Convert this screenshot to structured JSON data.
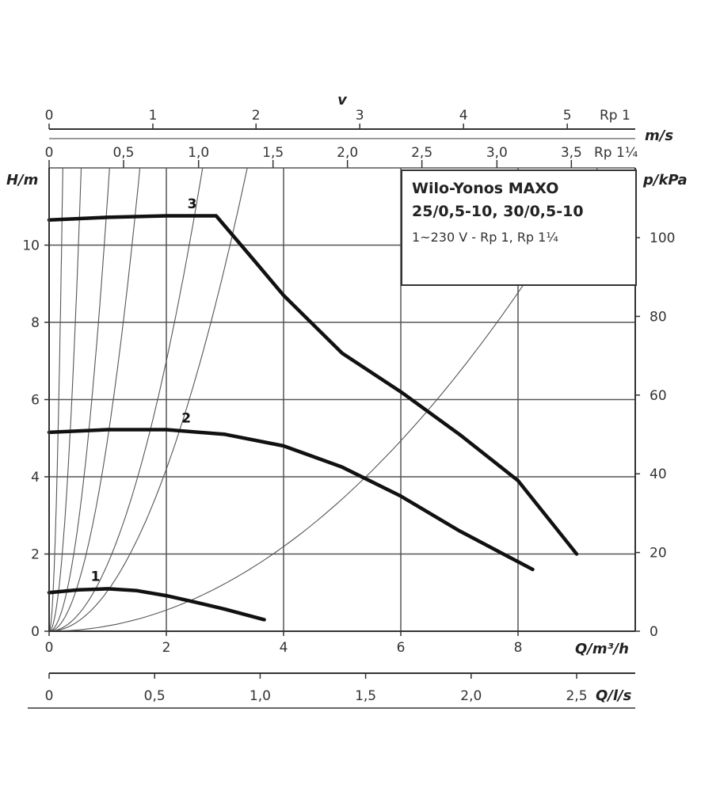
{
  "chart_data": {
    "type": "line",
    "title_lines": [
      "Wilo-Yonos MAXO",
      "25/0,5-10, 30/0,5-10"
    ],
    "subtitle": "1~230 V - Rp 1, Rp 1¼",
    "xlabel": "Q/m³/h",
    "ylabel": "H/m",
    "y2label": "p/kPa",
    "xlim": [
      0,
      10
    ],
    "ylim": [
      0,
      12
    ],
    "grid": true,
    "x_ticks": [
      0,
      2,
      4,
      6,
      8
    ],
    "x_tick_labels": [
      "0",
      "2",
      "4",
      "6",
      "8"
    ],
    "y_ticks": [
      0,
      2,
      4,
      6,
      8,
      10
    ],
    "y_tick_labels": [
      "0",
      "2",
      "4",
      "6",
      "8",
      "10"
    ],
    "y2_ticks": [
      0,
      20,
      40,
      60,
      80,
      100
    ],
    "y2_tick_labels": [
      "0",
      "20",
      "40",
      "60",
      "80",
      "100"
    ],
    "secondary_x_axes": [
      {
        "position": "bottom",
        "label": "Q/l/s",
        "ticks": [
          {
            "x": 0,
            "label": "0"
          },
          {
            "x": 1.8,
            "label": "0,5"
          },
          {
            "x": 3.6,
            "label": "1,0"
          },
          {
            "x": 5.4,
            "label": "1,5"
          },
          {
            "x": 7.2,
            "label": "2,0"
          },
          {
            "x": 9.0,
            "label": "2,5"
          }
        ]
      },
      {
        "position": "top",
        "label": "v",
        "suffix": "Rp 1",
        "ticks": [
          {
            "x": 0,
            "label": "0"
          },
          {
            "x": 1.77,
            "label": "1"
          },
          {
            "x": 3.53,
            "label": "2"
          },
          {
            "x": 5.3,
            "label": "3"
          },
          {
            "x": 7.07,
            "label": "4"
          },
          {
            "x": 8.84,
            "label": "5"
          }
        ]
      },
      {
        "position": "top",
        "label": "m/s",
        "suffix": "Rp 1¼",
        "ticks": [
          {
            "x": 0,
            "label": "0"
          },
          {
            "x": 1.27,
            "label": "0,5"
          },
          {
            "x": 2.55,
            "label": "1,0"
          },
          {
            "x": 3.82,
            "label": "1,5"
          },
          {
            "x": 5.09,
            "label": "2,0"
          },
          {
            "x": 6.36,
            "label": "2,5"
          },
          {
            "x": 7.64,
            "label": "3,0"
          },
          {
            "x": 8.91,
            "label": "3,5"
          }
        ]
      }
    ],
    "series": [
      {
        "name": "1",
        "x": [
          0,
          0.5,
          1.0,
          1.5,
          2.0,
          2.5,
          3.0,
          3.67
        ],
        "y": [
          1.0,
          1.07,
          1.1,
          1.05,
          0.92,
          0.75,
          0.57,
          0.3
        ]
      },
      {
        "name": "2",
        "x": [
          0,
          1.0,
          2.0,
          3.0,
          4.0,
          5.0,
          6.0,
          7.0,
          8.0,
          8.25
        ],
        "y": [
          5.15,
          5.22,
          5.22,
          5.1,
          4.8,
          4.25,
          3.5,
          2.6,
          1.8,
          1.6
        ]
      },
      {
        "name": "3",
        "x": [
          0,
          1.0,
          2.0,
          2.85,
          3.5,
          4.0,
          5.0,
          6.0,
          7.0,
          8.0,
          9.0
        ],
        "y": [
          10.65,
          10.72,
          10.76,
          10.76,
          9.6,
          8.7,
          7.2,
          6.2,
          5.1,
          3.9,
          2.0
        ]
      }
    ],
    "system_curves_k": [
      220,
      40,
      11.3,
      5.0,
      1.75,
      1.05,
      0.137
    ]
  }
}
